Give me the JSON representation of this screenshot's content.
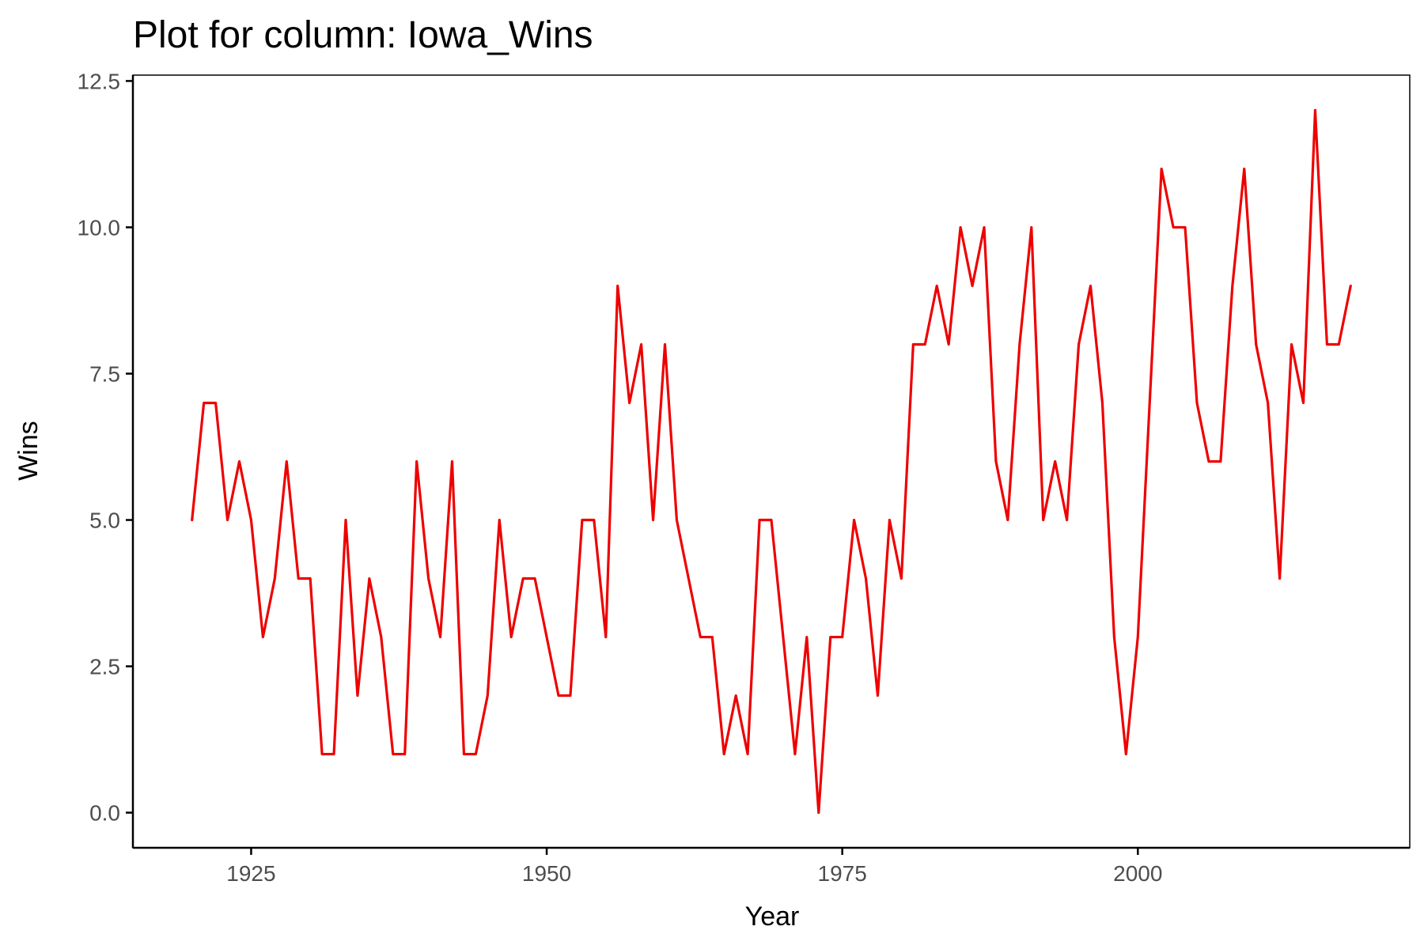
{
  "chart_data": {
    "type": "line",
    "title": "Plot for column:  Iowa_Wins",
    "xlabel": "Year",
    "ylabel": "Wins",
    "xlim": [
      1915,
      2023
    ],
    "ylim": [
      -0.6,
      12.6
    ],
    "x_ticks": [
      1925,
      1950,
      1975,
      2000
    ],
    "y_ticks": [
      0,
      2.5,
      5,
      7.5,
      10,
      12.5
    ],
    "y_tick_labels": [
      "0.0",
      "2.5",
      "5.0",
      "7.5",
      "10.0",
      "12.5"
    ],
    "x_tick_labels": [
      "1925",
      "1950",
      "1975",
      "2000"
    ],
    "grid": false,
    "legend": "none",
    "line_color": "#ee0000",
    "x": [
      1920,
      1921,
      1922,
      1923,
      1924,
      1925,
      1926,
      1927,
      1928,
      1929,
      1930,
      1931,
      1932,
      1933,
      1934,
      1935,
      1936,
      1937,
      1938,
      1939,
      1940,
      1941,
      1942,
      1943,
      1944,
      1945,
      1946,
      1947,
      1948,
      1949,
      1950,
      1951,
      1952,
      1953,
      1954,
      1955,
      1956,
      1957,
      1958,
      1959,
      1960,
      1961,
      1962,
      1963,
      1964,
      1965,
      1966,
      1967,
      1968,
      1969,
      1970,
      1971,
      1972,
      1973,
      1974,
      1975,
      1976,
      1977,
      1978,
      1979,
      1980,
      1981,
      1982,
      1983,
      1984,
      1985,
      1986,
      1987,
      1988,
      1989,
      1990,
      1991,
      1992,
      1993,
      1994,
      1995,
      1996,
      1997,
      1998,
      1999,
      2000,
      2001,
      2002,
      2003,
      2004,
      2005,
      2006,
      2007,
      2008,
      2009,
      2010,
      2011,
      2012,
      2013,
      2014,
      2015,
      2016,
      2017,
      2018
    ],
    "y": [
      5,
      7,
      7,
      5,
      6,
      5,
      3,
      4,
      6,
      4,
      4,
      1,
      1,
      5,
      2,
      4,
      3,
      1,
      1,
      6,
      4,
      3,
      6,
      1,
      1,
      2,
      5,
      3,
      4,
      4,
      3,
      2,
      2,
      5,
      5,
      3,
      9,
      7,
      8,
      5,
      8,
      5,
      4,
      3,
      3,
      1,
      2,
      1,
      5,
      5,
      3,
      1,
      3,
      0,
      3,
      3,
      5,
      4,
      2,
      5,
      4,
      8,
      8,
      9,
      8,
      10,
      9,
      10,
      6,
      5,
      8,
      10,
      5,
      6,
      5,
      8,
      9,
      7,
      3,
      1,
      3,
      7,
      11,
      10,
      10,
      7,
      6,
      6,
      9,
      11,
      8,
      7,
      4,
      8,
      7,
      12,
      8,
      8,
      9
    ]
  }
}
